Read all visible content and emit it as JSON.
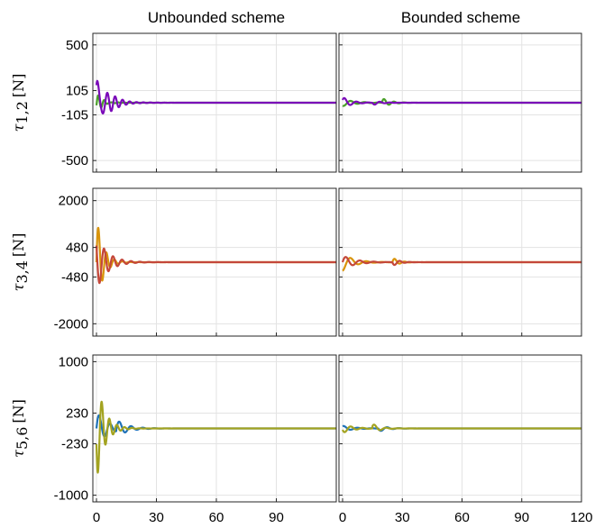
{
  "columns": [
    "Unbounded scheme",
    "Bounded scheme"
  ],
  "chart_data": {
    "type": "line",
    "xlim": [
      0,
      120
    ],
    "xticks": [
      0,
      30,
      60,
      90,
      120
    ],
    "xtick_labels_left": [
      "0",
      "30",
      "60",
      "90"
    ],
    "xtick_labels_right": [
      "0",
      "30",
      "60",
      "90",
      "120"
    ],
    "grid": true,
    "rows": [
      {
        "ylabel_symbol": "τ",
        "ylabel_sub": "1,2",
        "ylabel_unit": "[N]",
        "ylim": [
          -600,
          600
        ],
        "yticks": [
          500,
          105,
          -105,
          -500
        ],
        "ytick_labels": [
          "500",
          "105",
          "-105",
          "-500"
        ],
        "series_colors": [
          "#4aa029",
          "#7a0ab8"
        ],
        "unbounded": {
          "A": [
            [
              0,
              -25,
              2.5,
              1.5,
              2
            ],
            [
              0,
              60,
              3.3,
              1.0,
              0
            ]
          ],
          "B": [
            [
              0,
              -150,
              3.5,
              1.8,
              0.2
            ],
            [
              0,
              380,
              4.2,
              0.8,
              0.5
            ]
          ]
        },
        "bounded": {
          "A": [
            [
              0,
              -30,
              7,
              0.9,
              1
            ],
            [
              20,
              40,
              5,
              0.8,
              0.4
            ]
          ],
          "B": [
            [
              0,
              50,
              6,
              0.7,
              0.5
            ],
            [
              15,
              -20,
              5,
              0.8,
              0
            ]
          ]
        }
      },
      {
        "ylabel_symbol": "τ",
        "ylabel_sub": "3,4",
        "ylabel_unit": "[N]",
        "ylim": [
          -2400,
          2400
        ],
        "yticks": [
          2000,
          480,
          -480,
          -2000
        ],
        "ytick_labels": [
          "2000",
          "480",
          "-480",
          "-2000"
        ],
        "series_colors": [
          "#d9940a",
          "#c4473a"
        ],
        "unbounded": {
          "A": [
            [
              0,
              1500,
              4.0,
              0.8,
              0
            ]
          ],
          "B": [
            [
              0,
              900,
              4.5,
              1.2,
              2.5
            ]
          ]
        },
        "bounded": {
          "A": [
            [
              0,
              -280,
              8,
              0.7,
              1.5
            ],
            [
              25,
              160,
              5,
              0.6,
              0
            ]
          ],
          "B": [
            [
              0,
              220,
              7,
              0.9,
              0
            ],
            [
              25,
              -120,
              5,
              0.7,
              0
            ]
          ]
        }
      },
      {
        "ylabel_symbol": "τ",
        "ylabel_sub": "5,6",
        "ylabel_unit": "[N]",
        "ylim": [
          -1100,
          1100
        ],
        "yticks": [
          1000,
          230,
          -230,
          -1000
        ],
        "ytick_labels": [
          "1000",
          "230",
          "-230",
          "-1000"
        ],
        "series_colors": [
          "#1f72b8",
          "#a3a320"
        ],
        "unbounded": {
          "A": [
            [
              0,
              250,
              5.5,
              1.0,
              0
            ],
            [
              10,
              120,
              6.0,
              0.8,
              0.3
            ]
          ],
          "B": [
            [
              0,
              -800,
              3.8,
              1.0,
              0.3
            ]
          ]
        },
        "bounded": {
          "A": [
            [
              0,
              40,
              7,
              0.8,
              1
            ],
            [
              18,
              -50,
              6,
              0.7,
              0
            ]
          ],
          "B": [
            [
              0,
              -70,
              6,
              0.8,
              0.3
            ],
            [
              15,
              70,
              6,
              0.6,
              0.5
            ]
          ]
        }
      }
    ]
  }
}
